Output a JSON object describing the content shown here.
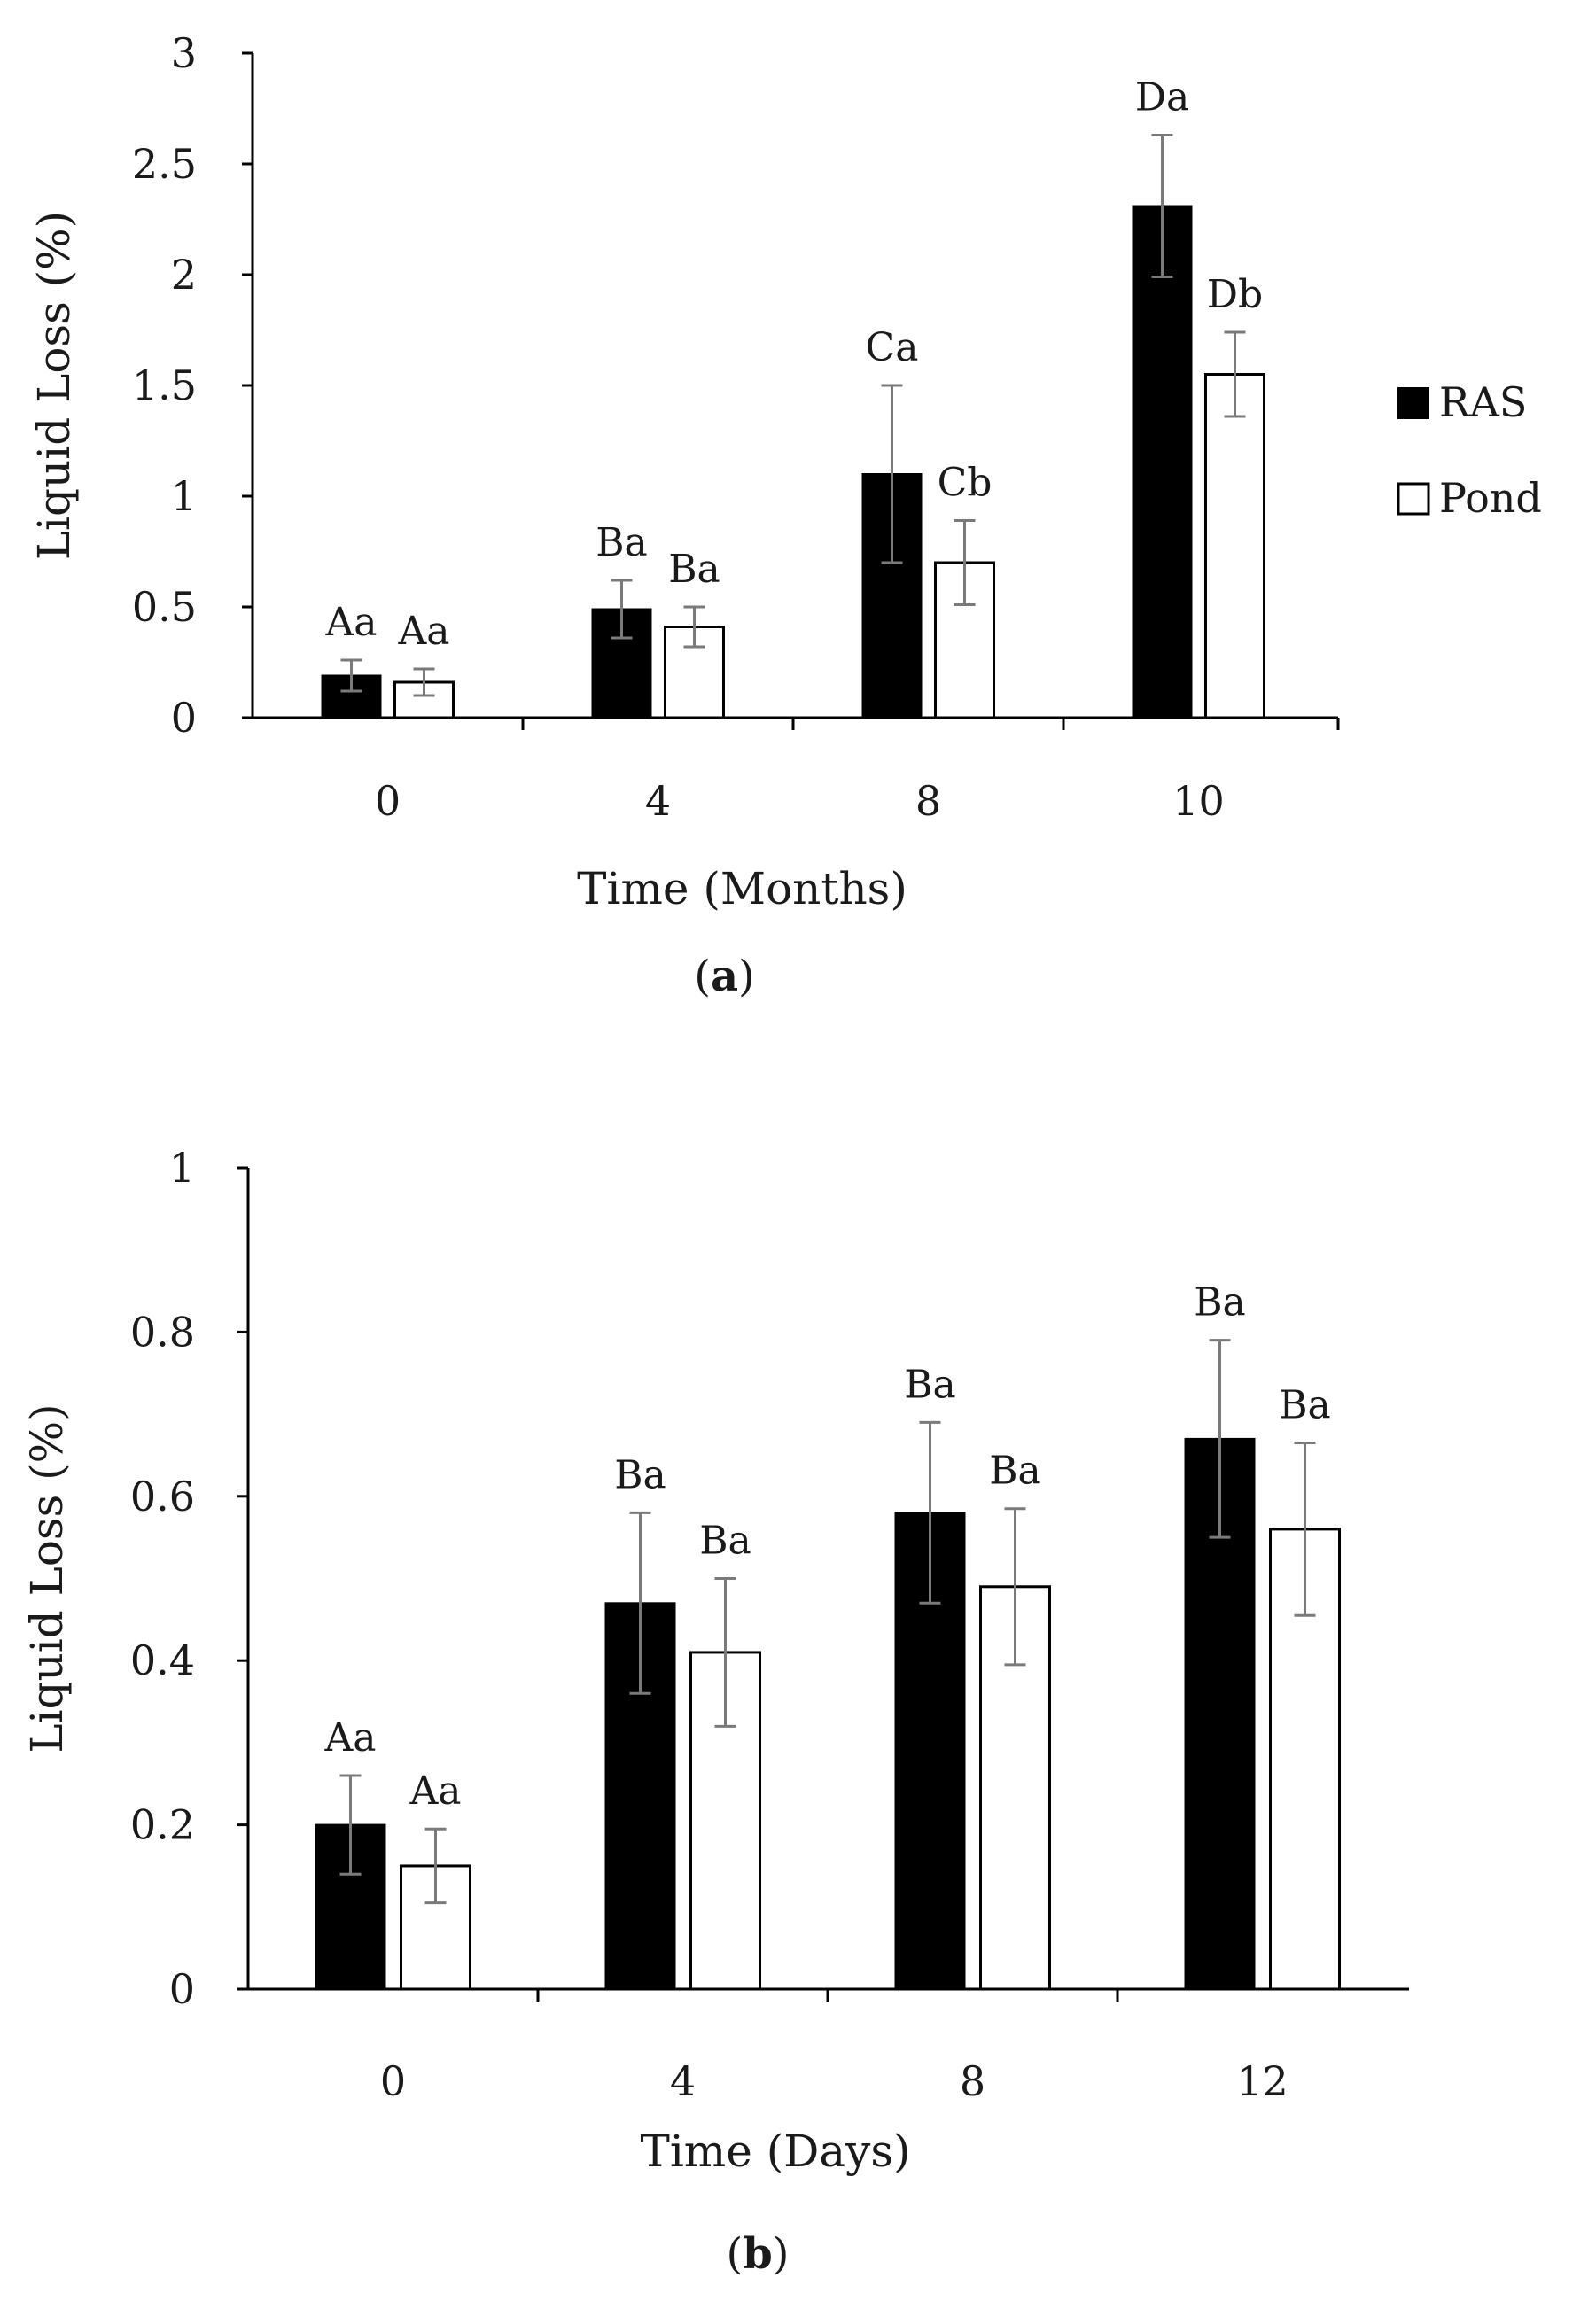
{
  "legend": {
    "items": [
      {
        "name": "RAS",
        "color": "#000000"
      },
      {
        "name": "Pond",
        "color": "#ffffff"
      }
    ]
  },
  "chart_data": [
    {
      "type": "bar",
      "panel_label": "a",
      "categories": [
        "0",
        "4",
        "8",
        "10"
      ],
      "xlabel": "Time (Months)",
      "ylabel": "Liquid Loss (%)",
      "ylim": [
        0,
        3
      ],
      "yticks": [
        "0",
        "0.5",
        "1",
        "1.5",
        "2",
        "2.5",
        "3"
      ],
      "series": [
        {
          "name": "RAS",
          "values": [
            0.19,
            0.49,
            1.1,
            2.31
          ],
          "errors": [
            0.07,
            0.13,
            0.4,
            0.32
          ],
          "labels": [
            "Aa",
            "Ba",
            "Ca",
            "Da"
          ]
        },
        {
          "name": "Pond",
          "values": [
            0.16,
            0.41,
            0.7,
            1.55
          ],
          "errors": [
            0.06,
            0.09,
            0.19,
            0.19
          ],
          "labels": [
            "Aa",
            "Ba",
            "Cb",
            "Db"
          ]
        }
      ]
    },
    {
      "type": "bar",
      "panel_label": "b",
      "categories": [
        "0",
        "4",
        "8",
        "12"
      ],
      "xlabel": "Time (Days)",
      "ylabel": "Liquid Loss (%)",
      "ylim": [
        0,
        1
      ],
      "yticks": [
        "0",
        "0.2",
        "0.4",
        "0.6",
        "0.8",
        "1"
      ],
      "series": [
        {
          "name": "RAS",
          "values": [
            0.2,
            0.47,
            0.58,
            0.67
          ],
          "errors": [
            0.06,
            0.11,
            0.11,
            0.12
          ],
          "labels": [
            "Aa",
            "Ba",
            "Ba",
            "Ba"
          ]
        },
        {
          "name": "Pond",
          "values": [
            0.15,
            0.41,
            0.49,
            0.56
          ],
          "errors": [
            0.045,
            0.09,
            0.095,
            0.105
          ],
          "labels": [
            "Aa",
            "Ba",
            "Ba",
            "Ba"
          ]
        }
      ]
    }
  ]
}
